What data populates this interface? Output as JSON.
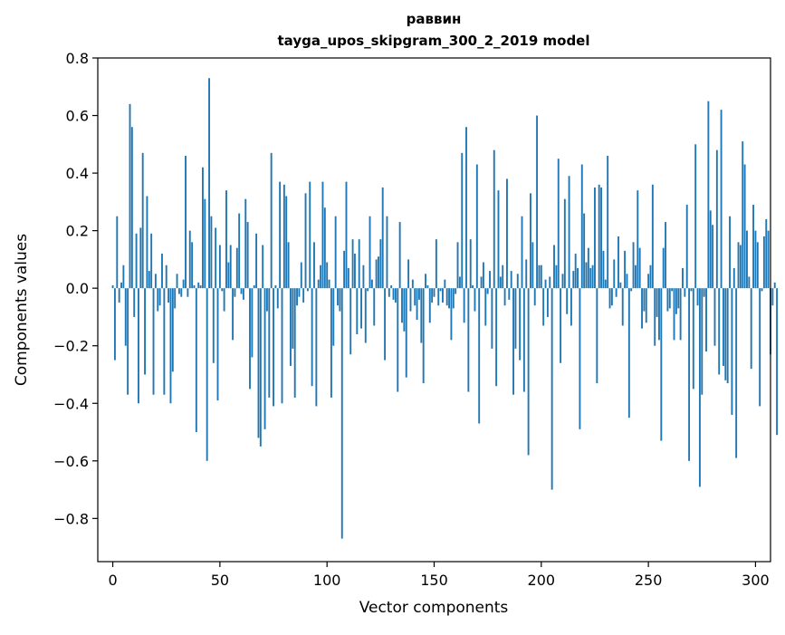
{
  "chart_data": {
    "type": "bar",
    "title": "раввин",
    "subtitle": "tayga_upos_skipgram_300_2_2019 model",
    "xlabel": "Vector components",
    "ylabel": "Components values",
    "xlim": [
      -7,
      307
    ],
    "ylim": [
      -0.95,
      0.8
    ],
    "xticks": [
      0,
      50,
      100,
      150,
      200,
      250,
      300
    ],
    "xtick_labels": [
      "0",
      "50",
      "100",
      "150",
      "200",
      "250",
      "300"
    ],
    "yticks": [
      -0.8,
      -0.6,
      -0.4,
      -0.2,
      0.0,
      0.2,
      0.4,
      0.6,
      0.8
    ],
    "ytick_labels": [
      "−0.8",
      "−0.6",
      "−0.4",
      "−0.2",
      "0.0",
      "0.2",
      "0.4",
      "0.6",
      "0.8"
    ],
    "grid": false,
    "bar_color": "#1f77b4",
    "values": [
      0.01,
      -0.25,
      0.25,
      -0.05,
      0.02,
      0.08,
      -0.2,
      -0.37,
      0.64,
      0.56,
      -0.1,
      0.19,
      -0.4,
      0.21,
      0.47,
      -0.3,
      0.32,
      0.06,
      0.19,
      -0.37,
      0.05,
      -0.08,
      -0.06,
      0.12,
      -0.37,
      0.08,
      -0.05,
      -0.4,
      -0.29,
      -0.07,
      0.05,
      -0.02,
      -0.03,
      0.03,
      0.46,
      -0.03,
      0.2,
      0.16,
      0.01,
      -0.5,
      0.02,
      0.01,
      0.42,
      0.31,
      -0.6,
      0.73,
      0.25,
      -0.26,
      0.21,
      -0.39,
      0.15,
      -0.01,
      -0.08,
      0.34,
      0.09,
      0.15,
      -0.18,
      -0.03,
      0.14,
      0.26,
      -0.02,
      -0.04,
      0.31,
      0.23,
      -0.35,
      -0.24,
      0.01,
      0.19,
      -0.52,
      -0.55,
      0.15,
      -0.49,
      -0.08,
      -0.38,
      0.47,
      -0.41,
      0.01,
      -0.07,
      0.37,
      -0.4,
      0.36,
      0.32,
      0.16,
      -0.27,
      -0.21,
      -0.38,
      -0.06,
      -0.03,
      0.09,
      -0.05,
      0.33,
      -0.01,
      0.37,
      -0.34,
      0.16,
      -0.41,
      0.03,
      0.08,
      0.37,
      0.28,
      0.09,
      0.03,
      -0.38,
      -0.2,
      0.25,
      -0.06,
      -0.08,
      -0.87,
      0.13,
      0.37,
      0.07,
      -0.23,
      0.17,
      0.12,
      -0.16,
      0.17,
      -0.14,
      0.08,
      -0.19,
      -0.01,
      0.25,
      0.03,
      -0.13,
      0.1,
      0.11,
      0.17,
      0.35,
      -0.25,
      0.25,
      -0.03,
      0.01,
      -0.04,
      -0.05,
      -0.36,
      0.23,
      -0.12,
      -0.15,
      -0.31,
      0.1,
      -0.08,
      0.03,
      -0.06,
      -0.11,
      -0.04,
      -0.19,
      -0.33,
      0.05,
      0.01,
      -0.12,
      -0.05,
      -0.03,
      0.17,
      -0.06,
      -0.01,
      -0.05,
      0.03,
      -0.06,
      -0.07,
      -0.18,
      -0.07,
      -0.02,
      0.16,
      0.04,
      0.47,
      -0.12,
      0.56,
      -0.36,
      0.17,
      0.01,
      -0.08,
      0.43,
      -0.47,
      0.04,
      0.09,
      -0.13,
      -0.02,
      0.06,
      -0.21,
      0.48,
      -0.34,
      0.34,
      0.04,
      0.08,
      -0.06,
      0.38,
      -0.04,
      0.06,
      -0.37,
      -0.21,
      0.05,
      -0.25,
      0.25,
      -0.36,
      0.1,
      -0.58,
      0.33,
      0.16,
      -0.06,
      0.6,
      0.08,
      0.08,
      -0.13,
      0.03,
      -0.1,
      0.04,
      -0.7,
      0.15,
      0.08,
      0.45,
      -0.26,
      0.05,
      0.31,
      -0.09,
      0.39,
      -0.13,
      0.06,
      0.12,
      0.07,
      -0.49,
      0.43,
      0.26,
      0.09,
      0.14,
      0.07,
      0.08,
      0.35,
      -0.33,
      0.36,
      0.35,
      0.13,
      0.03,
      0.46,
      -0.07,
      -0.06,
      0.1,
      -0.03,
      0.18,
      0.02,
      -0.13,
      0.13,
      0.05,
      -0.45,
      -0.01,
      0.16,
      0.08,
      0.34,
      0.14,
      -0.14,
      -0.08,
      -0.12,
      0.05,
      0.08,
      0.36,
      -0.2,
      -0.1,
      -0.18,
      -0.53,
      0.14,
      0.23,
      -0.08,
      -0.07,
      -0.01,
      -0.18,
      -0.09,
      -0.07,
      -0.18,
      0.07,
      -0.03,
      0.29,
      -0.6,
      -0.01,
      -0.35,
      0.5,
      -0.06,
      -0.69,
      -0.37,
      -0.03,
      -0.22,
      0.65,
      0.27,
      0.22,
      -0.2,
      0.48,
      -0.3,
      0.62,
      -0.27,
      -0.32,
      -0.33,
      0.25,
      -0.44,
      0.07,
      -0.59,
      0.16,
      0.15,
      0.51,
      0.43,
      0.2,
      0.04,
      -0.28,
      0.29,
      0.2,
      0.16,
      -0.41,
      -0.01,
      0.18,
      0.24,
      0.2,
      -0.23,
      -0.06,
      0.02,
      -0.51
    ]
  }
}
